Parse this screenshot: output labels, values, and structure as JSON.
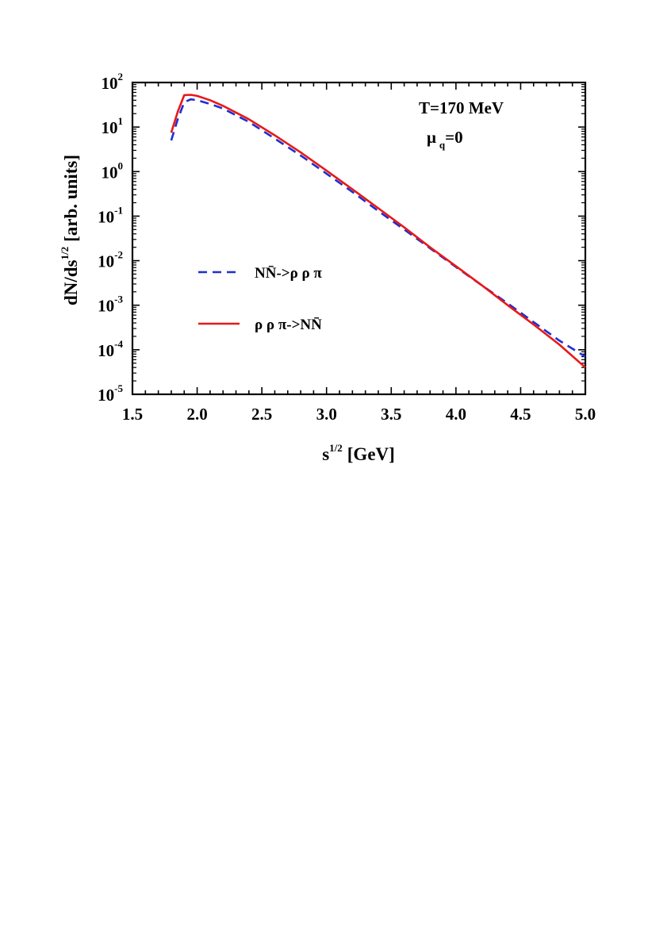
{
  "chart_data": {
    "type": "line",
    "title": "",
    "xlabel": "s",
    "xlabel_sup": "1/2",
    "xlabel_unit": "[GeV]",
    "ylabel": "dN/ds",
    "ylabel_sup": "1/2",
    "ylabel_unit": "[arb. units]",
    "xlim": [
      1.5,
      5.0
    ],
    "ylim_log10": [
      -5,
      2
    ],
    "y_scale": "log",
    "x_ticks": [
      1.5,
      2.0,
      2.5,
      3.0,
      3.5,
      4.0,
      4.5,
      5.0
    ],
    "x_tick_labels": [
      "1.5",
      "2.0",
      "2.5",
      "3.0",
      "3.5",
      "4.0",
      "4.5",
      "5.0"
    ],
    "y_ticks_exp": [
      2,
      1,
      0,
      -1,
      -2,
      -3,
      -4,
      -5
    ],
    "y_tick_base": "10",
    "annotations": {
      "temperature": "T=170 MeV",
      "mu_symbol": "μ",
      "mu_subscript": "q",
      "mu_value": "=0"
    },
    "legend_position": "center-left",
    "series": [
      {
        "name": "NN̄->ρ ρ π",
        "style": "dashed",
        "color": "#1f2fd1",
        "x": [
          1.8,
          1.85,
          1.9,
          1.95,
          2.0,
          2.1,
          2.2,
          2.4,
          2.6,
          2.8,
          3.0,
          3.2,
          3.4,
          3.6,
          3.8,
          4.0,
          4.2,
          4.4,
          4.6,
          4.8,
          5.0
        ],
        "y": [
          5.0,
          15.0,
          36.0,
          42.0,
          40.0,
          33.0,
          26.0,
          13.0,
          5.5,
          2.3,
          0.9,
          0.35,
          0.13,
          0.05,
          0.019,
          0.0072,
          0.0028,
          0.0011,
          0.00042,
          0.00016,
          7e-05
        ]
      },
      {
        "name": "ρ ρ π->NN̄",
        "style": "solid",
        "color": "#e81818",
        "x": [
          1.8,
          1.85,
          1.9,
          1.95,
          2.0,
          2.1,
          2.2,
          2.4,
          2.6,
          2.8,
          3.0,
          3.2,
          3.4,
          3.6,
          3.8,
          4.0,
          4.2,
          4.4,
          4.6,
          4.8,
          5.0
        ],
        "y": [
          7.5,
          22.0,
          52.0,
          53.0,
          50.0,
          40.0,
          30.0,
          15.0,
          6.5,
          2.7,
          1.05,
          0.4,
          0.15,
          0.056,
          0.02,
          0.0075,
          0.0028,
          0.001,
          0.00037,
          0.00013,
          4e-05
        ]
      }
    ]
  }
}
